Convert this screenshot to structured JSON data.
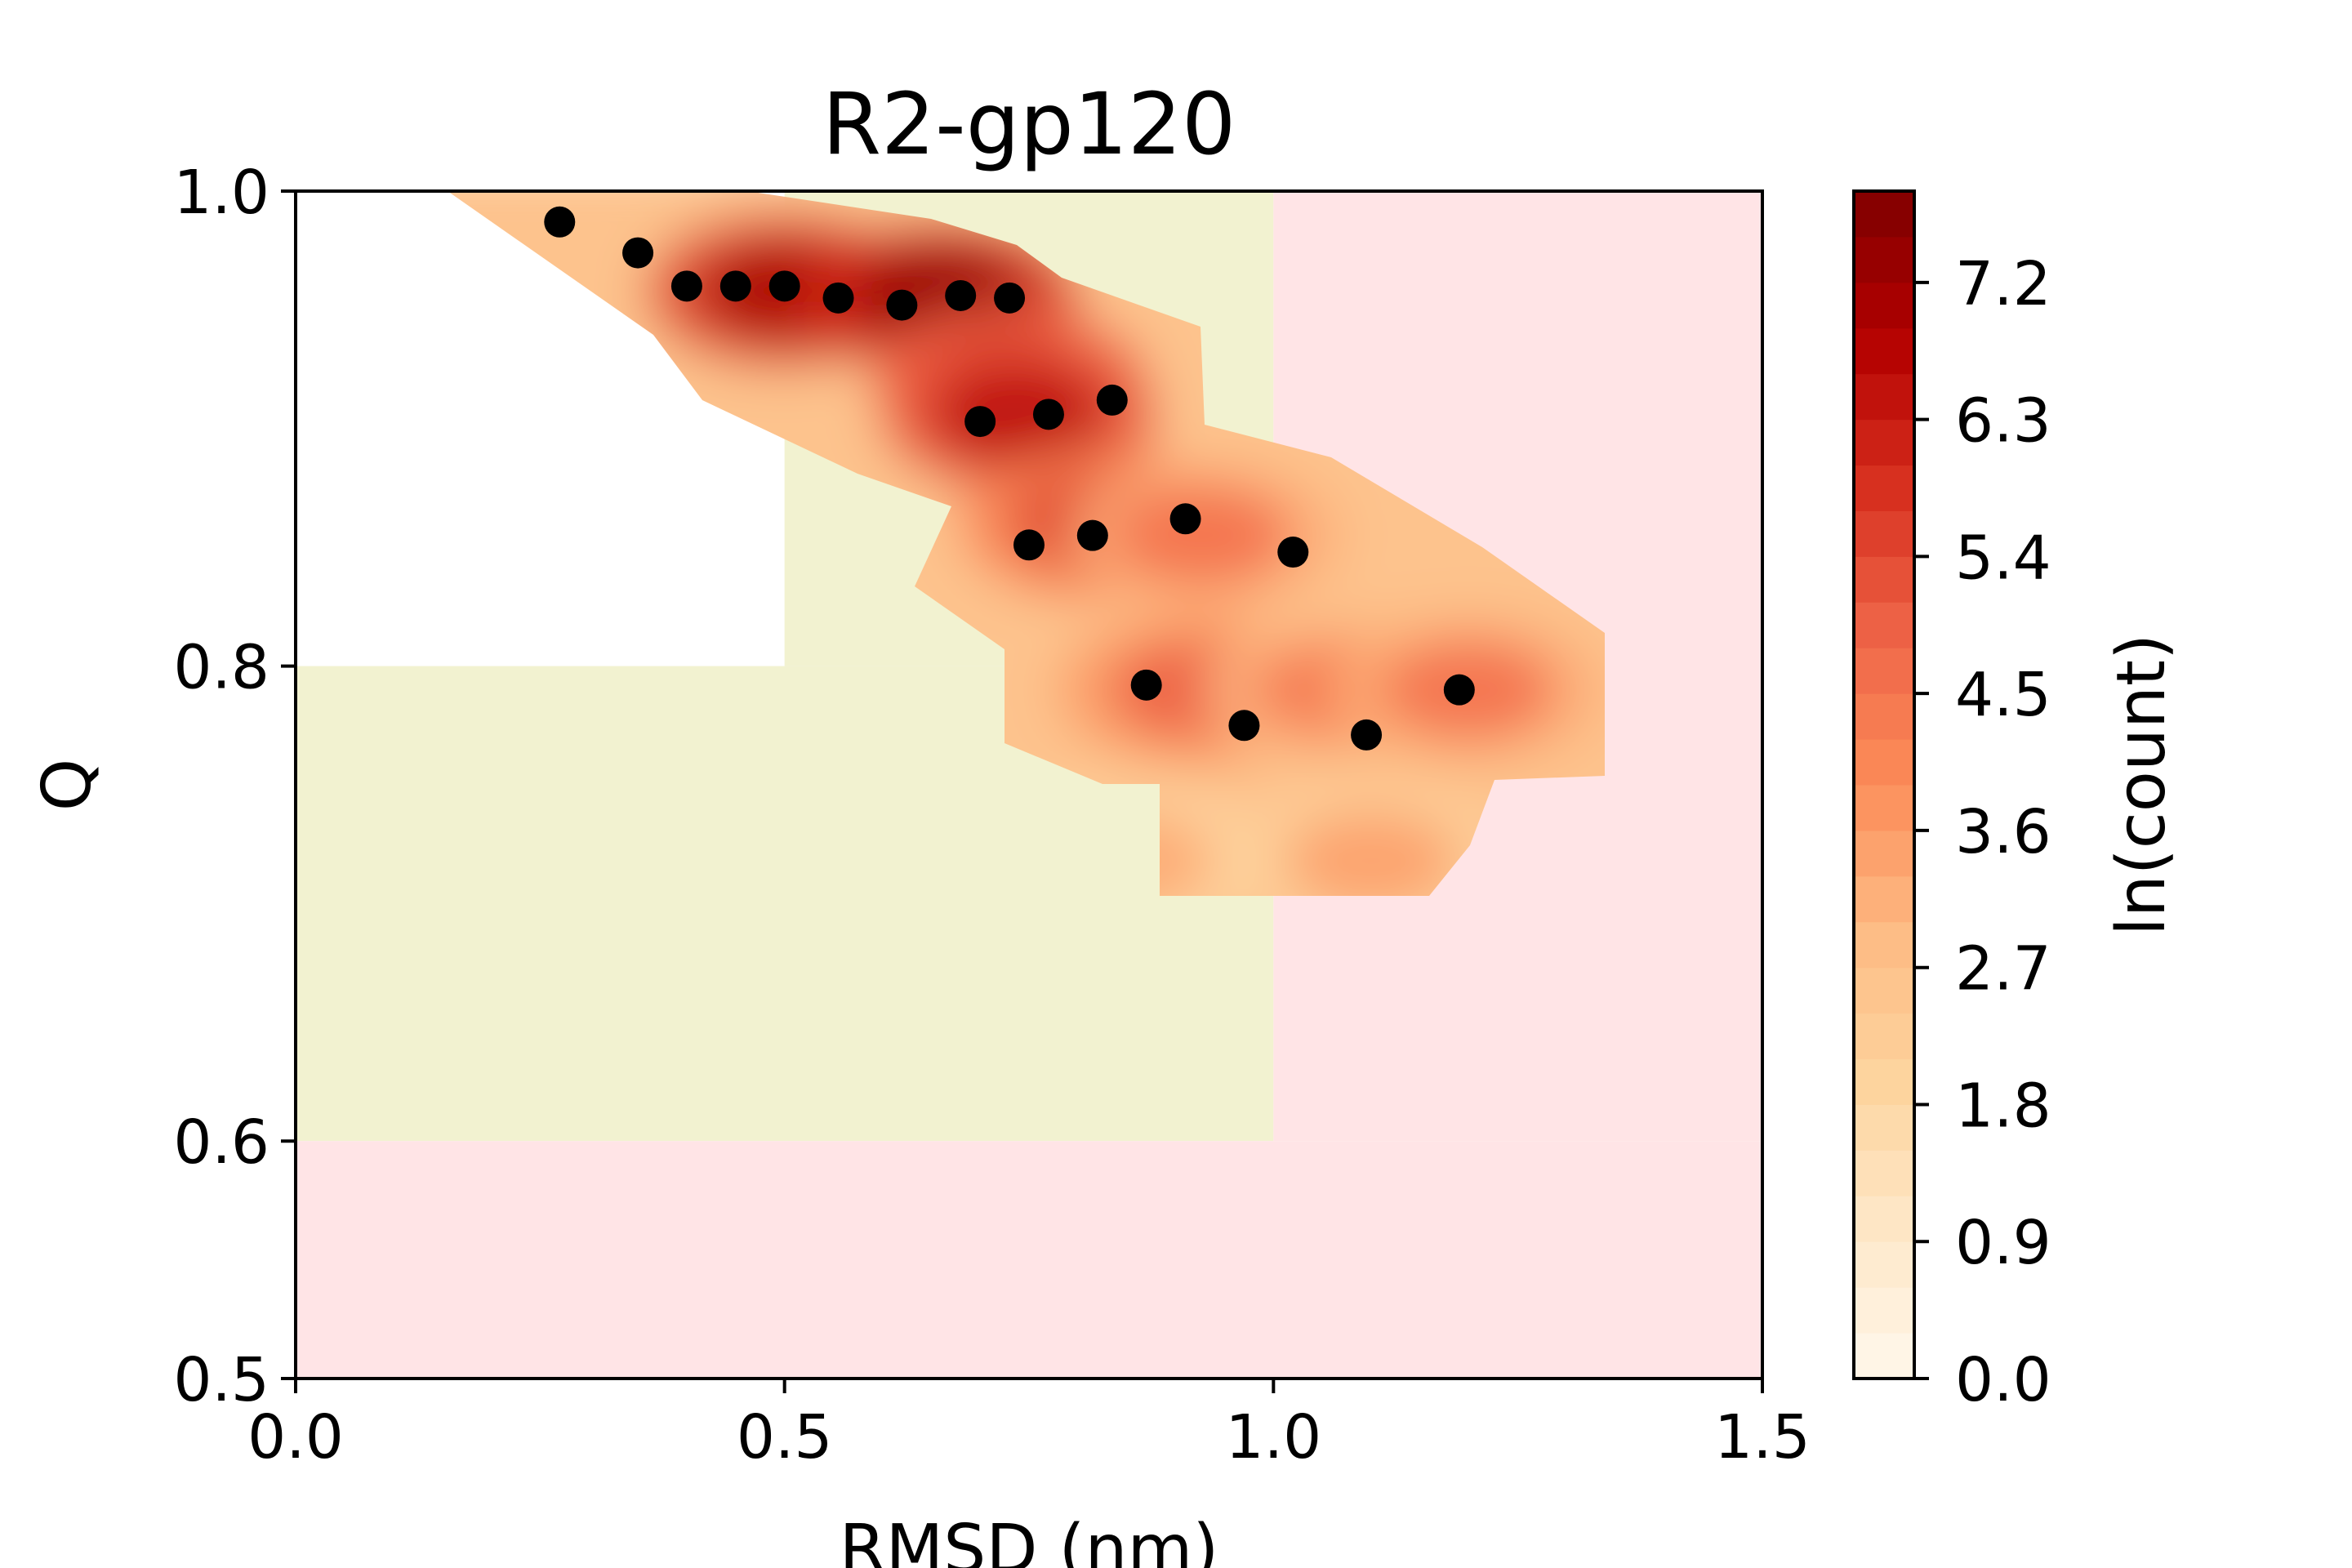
{
  "chart_data": {
    "type": "heatmap",
    "title": "R2-gp120",
    "xlabel": "RMSD (nm)",
    "ylabel": "Q",
    "xlim": [
      0.0,
      1.5
    ],
    "ylim": [
      0.5,
      1.0
    ],
    "x_ticks": [
      "0.0",
      "0.5",
      "1.0",
      "1.5"
    ],
    "y_ticks": [
      "0.5",
      "0.6",
      "0.8",
      "1.0"
    ],
    "colorbar": {
      "label": "ln(count)",
      "range": [
        0.0,
        7.8
      ],
      "ticks": [
        "0.0",
        "0.9",
        "1.8",
        "2.7",
        "3.6",
        "4.5",
        "5.4",
        "6.3",
        "7.2"
      ],
      "colormap": "OrRd"
    },
    "background_regions": [
      {
        "x": [
          0.0,
          0.5
        ],
        "y": [
          0.8,
          1.0
        ],
        "color": "#ffffff"
      },
      {
        "x": [
          0.5,
          1.0
        ],
        "y": [
          0.8,
          1.0
        ],
        "color": "#f2f2d0"
      },
      {
        "x": [
          0.0,
          1.0
        ],
        "y": [
          0.6,
          0.8
        ],
        "color": "#f2f2d0"
      },
      {
        "x": [
          1.0,
          1.5
        ],
        "y": [
          0.6,
          1.0
        ],
        "color": "#ffe4e6"
      },
      {
        "x": [
          0.0,
          1.5
        ],
        "y": [
          0.5,
          0.6
        ],
        "color": "#ffe4e6"
      }
    ],
    "density_blobs": [
      {
        "x": 0.5,
        "y": 0.958,
        "level": 7.0
      },
      {
        "x": 0.66,
        "y": 0.955,
        "level": 7.4
      },
      {
        "x": 0.73,
        "y": 0.92,
        "level": 6.2
      },
      {
        "x": 0.74,
        "y": 0.905,
        "level": 6.6
      },
      {
        "x": 0.82,
        "y": 0.86,
        "level": 5.6
      },
      {
        "x": 0.93,
        "y": 0.855,
        "level": 4.6
      },
      {
        "x": 0.92,
        "y": 0.79,
        "level": 5.0
      },
      {
        "x": 1.07,
        "y": 0.79,
        "level": 4.4
      },
      {
        "x": 1.2,
        "y": 0.79,
        "level": 4.6
      },
      {
        "x": 0.85,
        "y": 0.718,
        "level": 3.3
      },
      {
        "x": 1.1,
        "y": 0.718,
        "level": 3.5
      }
    ],
    "points": [
      {
        "x": 0.27,
        "y": 0.987
      },
      {
        "x": 0.35,
        "y": 0.974
      },
      {
        "x": 0.4,
        "y": 0.96
      },
      {
        "x": 0.45,
        "y": 0.96
      },
      {
        "x": 0.5,
        "y": 0.96
      },
      {
        "x": 0.555,
        "y": 0.955
      },
      {
        "x": 0.62,
        "y": 0.952
      },
      {
        "x": 0.68,
        "y": 0.956
      },
      {
        "x": 0.73,
        "y": 0.955
      },
      {
        "x": 0.7,
        "y": 0.903
      },
      {
        "x": 0.77,
        "y": 0.906
      },
      {
        "x": 0.835,
        "y": 0.912
      },
      {
        "x": 0.75,
        "y": 0.851
      },
      {
        "x": 0.815,
        "y": 0.855
      },
      {
        "x": 0.91,
        "y": 0.862
      },
      {
        "x": 1.02,
        "y": 0.848
      },
      {
        "x": 0.87,
        "y": 0.792
      },
      {
        "x": 0.97,
        "y": 0.775
      },
      {
        "x": 1.095,
        "y": 0.771
      },
      {
        "x": 1.19,
        "y": 0.79
      }
    ]
  }
}
